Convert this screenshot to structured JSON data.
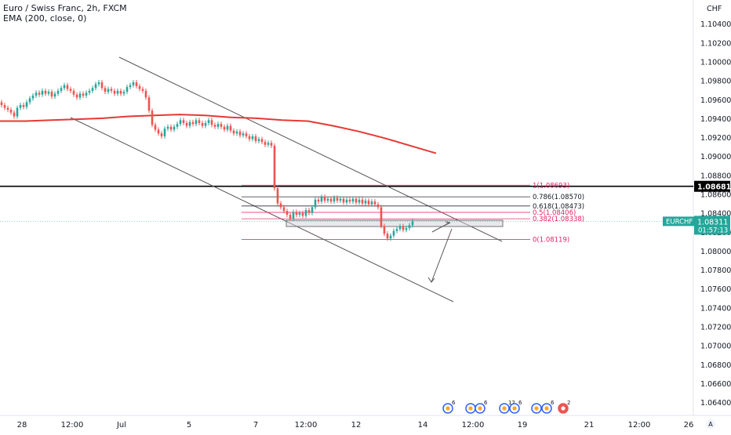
{
  "header": {
    "title": "Euro / Swiss Franc, 2h, FXCM",
    "indicator": "EMA (200, close, 0)"
  },
  "currency": "CHF",
  "chart_data": {
    "type": "candlestick",
    "symbol": "EURCHF",
    "timeframe": "2h",
    "ylim": [
      1.0626,
      1.1065
    ],
    "y_ticks": [
      "1.10400",
      "1.10200",
      "1.10000",
      "1.09800",
      "1.09600",
      "1.09400",
      "1.09200",
      "1.09000",
      "1.08800",
      "1.08600",
      "1.08400",
      "1.08200",
      "1.08000",
      "1.07800",
      "1.07600",
      "1.07400",
      "1.07200",
      "1.07000",
      "1.06800",
      "1.06600",
      "1.06400"
    ],
    "x_ticks": [
      "28",
      "12:00",
      "Jul",
      "5",
      "7",
      "12:00",
      "12",
      "14",
      "12:00",
      "19",
      "21",
      "12:00",
      "26"
    ],
    "last_price": "1.08311",
    "countdown": "01:57:13",
    "horizontal_level": "1.08681",
    "fibonacci": [
      {
        "label": "1(1.08693)",
        "value": 1.08693,
        "color": "#e91e63"
      },
      {
        "label": "0.786(1.08570)",
        "value": 1.0857,
        "color": "#131722"
      },
      {
        "label": "0.618(1.08473)",
        "value": 1.08473,
        "color": "#131722"
      },
      {
        "label": "0.5(1.08406)",
        "value": 1.08406,
        "color": "#e91e63"
      },
      {
        "label": "0.382(1.08338)",
        "value": 1.08338,
        "color": "#e91e63"
      },
      {
        "label": "0(1.08119)",
        "value": 1.08119,
        "color": "#e91e63"
      }
    ],
    "ema_200": [
      1.0937,
      1.0937,
      1.0938,
      1.0939,
      1.094,
      1.0942,
      1.0943,
      1.0944,
      1.0943,
      1.0941,
      1.094,
      1.0938,
      1.0937,
      1.0932,
      1.0926,
      1.0919,
      1.0911,
      1.0903
    ],
    "close": [
      1.0954,
      1.0951,
      1.0949,
      1.0946,
      1.0942,
      1.0951,
      1.0954,
      1.0952,
      1.0957,
      1.0961,
      1.0964,
      1.0967,
      1.0965,
      1.0969,
      1.0966,
      1.0968,
      1.0963,
      1.0966,
      1.0969,
      1.0972,
      1.0975,
      1.0971,
      1.0969,
      1.0965,
      1.0962,
      1.0966,
      1.0964,
      1.0967,
      1.0969,
      1.0972,
      1.0976,
      1.0978,
      1.0972,
      1.0968,
      1.0971,
      1.0969,
      1.0966,
      1.0969,
      1.0966,
      1.0968,
      1.0973,
      1.0975,
      1.0978,
      1.0974,
      1.0971,
      1.0969,
      1.0962,
      1.0948,
      1.0933,
      1.0928,
      1.0924,
      1.0921,
      1.0929,
      1.0931,
      1.0928,
      1.0931,
      1.0934,
      1.0938,
      1.0935,
      1.0932,
      1.0936,
      1.0934,
      1.0938,
      1.0935,
      1.0932,
      1.0935,
      1.0938,
      1.0933,
      1.0931,
      1.0934,
      1.0931,
      1.0928,
      1.0932,
      1.0927,
      1.0924,
      1.0926,
      1.0922,
      1.0924,
      1.0921,
      1.0918,
      1.0921,
      1.0916,
      1.0918,
      1.0915,
      1.0912,
      1.0914,
      1.0911,
      1.0866,
      1.085,
      1.0846,
      1.0842,
      1.0838,
      1.0834,
      1.0841,
      1.0838,
      1.084,
      1.0837,
      1.0843,
      1.084,
      1.0846,
      1.0854,
      1.0852,
      1.0857,
      1.0853,
      1.0855,
      1.0852,
      1.0856,
      1.0853,
      1.0855,
      1.0851,
      1.0854,
      1.0852,
      1.0855,
      1.0851,
      1.0854,
      1.085,
      1.0853,
      1.0849,
      1.0852,
      1.0849,
      1.0846,
      1.0826,
      1.0818,
      1.0813,
      1.0816,
      1.0821,
      1.0823,
      1.0826,
      1.0822,
      1.0824,
      1.0827,
      1.0831
    ],
    "x_range": {
      "candle_start_x": 2,
      "candle_step": 4.0
    }
  },
  "bottom": {
    "events": [
      {
        "label": "6"
      },
      {
        "label": "6"
      },
      {
        "label": "12"
      },
      {
        "label": "6"
      },
      {
        "label": "2"
      },
      {
        "label": "6"
      },
      {
        "label": "2"
      }
    ],
    "zoom_label": "A"
  }
}
